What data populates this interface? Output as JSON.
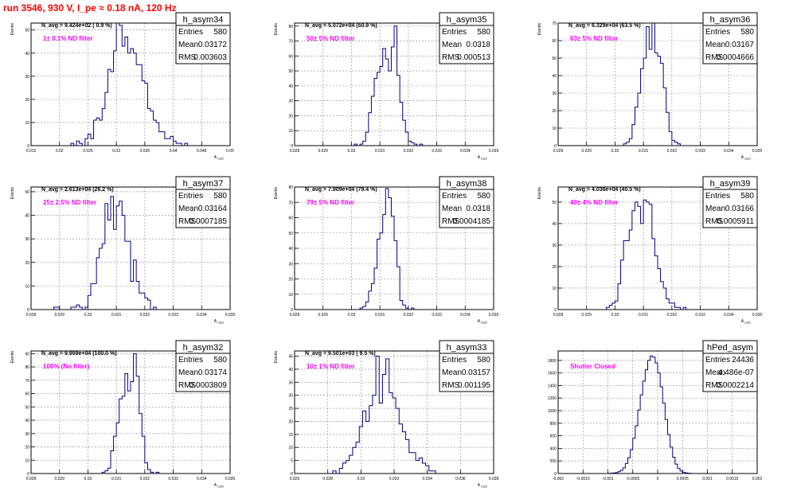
{
  "run_title": "run 3546,   930 V, I_pe ≈ 0.18 nA, 120 Hz",
  "stats_labels": [
    "Entries",
    "Mean",
    "RMS"
  ],
  "colors": {
    "line": "#000080",
    "note": "#ff00ff",
    "title": "#ff0000",
    "grid": "#888888"
  },
  "chart_data": [
    {
      "type": "bar",
      "name": "h_asym34",
      "ylabel": "Events",
      "xlabel": "A",
      "navg": "N_avg = 9.424e+02 ( 0.9 %)",
      "note": "1± 0.1% ND filter",
      "stats": {
        "entries": "580",
        "mean": "0.03172",
        "rms": "0.003603"
      },
      "xlim": [
        0.015,
        0.05
      ],
      "ylim": [
        0,
        53
      ],
      "xticks": [
        0.015,
        0.02,
        0.025,
        0.03,
        0.035,
        0.04,
        0.045,
        0.05
      ],
      "xtick_labels": [
        "0.015",
        "0.02",
        "0.025",
        "0.03",
        "0.035",
        "0.04",
        "0.045",
        "0.05"
      ],
      "yticks": [
        0,
        10,
        20,
        30,
        40,
        50
      ],
      "ytick_labels": [
        "0",
        "10",
        "20",
        "30",
        "40",
        "50"
      ],
      "bin_start": 0.022,
      "bin_width": 0.0005,
      "values": [
        1,
        0,
        2,
        1,
        0,
        3,
        5,
        3,
        11,
        12,
        11,
        16,
        23,
        33,
        32,
        41,
        53,
        52,
        43,
        47,
        40,
        42,
        40,
        35,
        35,
        28,
        27,
        16,
        15,
        11,
        10,
        6,
        6,
        3,
        3,
        4,
        2,
        1,
        1,
        0,
        1
      ]
    },
    {
      "type": "bar",
      "name": "h_asym35",
      "ylabel": "Events",
      "xlabel": "A",
      "navg": "N_avg = 5.072e+04 (50.9 %)",
      "note": "50± 5% ND filter",
      "stats": {
        "entries": "580",
        "mean": "0.0318",
        "rms": "0.000513"
      },
      "xlim": [
        0.028,
        0.035
      ],
      "ylim": [
        0,
        82
      ],
      "xticks": [
        0.028,
        0.029,
        0.03,
        0.031,
        0.032,
        0.033,
        0.034,
        0.035
      ],
      "xtick_labels": [
        "0.028",
        "0.029",
        "0.03",
        "0.031",
        "0.032",
        "0.033",
        "0.034",
        "0.035"
      ],
      "yticks": [
        0,
        10,
        20,
        30,
        40,
        50,
        60,
        70,
        80
      ],
      "ytick_labels": [
        "0",
        "10",
        "20",
        "30",
        "40",
        "50",
        "60",
        "70",
        "80"
      ],
      "bin_start": 0.0301,
      "bin_width": 0.0001,
      "values": [
        1,
        0,
        1,
        3,
        9,
        22,
        33,
        45,
        49,
        53,
        65,
        58,
        50,
        66,
        80,
        47,
        29,
        17,
        9,
        3,
        2,
        1,
        0,
        1
      ]
    },
    {
      "type": "bar",
      "name": "h_asym36",
      "ylabel": "Events",
      "xlabel": "A",
      "navg": "N_avg = 6.329e+04 (63.5 %)",
      "note": "63± 5% ND filter",
      "stats": {
        "entries": "580",
        "mean": "0.03167",
        "rms": "0.0004666"
      },
      "xlim": [
        0.028,
        0.035
      ],
      "ylim": [
        0,
        70
      ],
      "xticks": [
        0.028,
        0.029,
        0.03,
        0.031,
        0.032,
        0.033,
        0.034,
        0.035
      ],
      "xtick_labels": [
        "0.028",
        "0.029",
        "0.03",
        "0.031",
        "0.032",
        "0.033",
        "0.034",
        "0.035"
      ],
      "yticks": [
        0,
        10,
        20,
        30,
        40,
        50,
        60,
        70
      ],
      "ytick_labels": [
        "0",
        "10",
        "20",
        "30",
        "40",
        "50",
        "60",
        "70"
      ],
      "bin_start": 0.0303,
      "bin_width": 0.0001,
      "values": [
        1,
        2,
        4,
        12,
        22,
        30,
        44,
        50,
        68,
        55,
        70,
        53,
        51,
        47,
        33,
        19,
        8,
        3,
        2,
        1
      ]
    },
    {
      "type": "bar",
      "name": "h_asym37",
      "ylabel": "Events",
      "xlabel": "A",
      "navg": "N_avg = 2.613e+04 (26.2 %)",
      "note": "25± 2.5% ND filter",
      "stats": {
        "entries": "580",
        "mean": "0.03164",
        "rms": "0.0007185"
      },
      "xlim": [
        0.028,
        0.035
      ],
      "ylim": [
        0,
        52
      ],
      "xticks": [
        0.028,
        0.029,
        0.03,
        0.031,
        0.032,
        0.033,
        0.034,
        0.035
      ],
      "xtick_labels": [
        "0.028",
        "0.029",
        "0.03",
        "0.031",
        "0.032",
        "0.033",
        "0.034",
        "0.035"
      ],
      "yticks": [
        0,
        10,
        20,
        30,
        40,
        50
      ],
      "ytick_labels": [
        "0",
        "10",
        "20",
        "30",
        "40",
        "50"
      ],
      "bin_start": 0.0288,
      "bin_width": 0.0001,
      "values": [
        1,
        1,
        0,
        0,
        0,
        0,
        1,
        1,
        2,
        1,
        0,
        1,
        6,
        11,
        11,
        22,
        26,
        28,
        45,
        38,
        48,
        34,
        44,
        46,
        40,
        29,
        29,
        12,
        21,
        12,
        7,
        7,
        5,
        4,
        0,
        1
      ]
    },
    {
      "type": "bar",
      "name": "h_asym38",
      "ylabel": "Events",
      "xlabel": "A",
      "navg": "N_avg = 7.909e+04 (79.4 %)",
      "note": "79± 5% ND filter",
      "stats": {
        "entries": "580",
        "mean": "0.0318",
        "rms": "0.0004185"
      },
      "xlim": [
        0.028,
        0.035
      ],
      "ylim": [
        0,
        80
      ],
      "xticks": [
        0.028,
        0.029,
        0.03,
        0.031,
        0.032,
        0.033,
        0.034,
        0.035
      ],
      "xtick_labels": [
        "0.028",
        "0.029",
        "0.03",
        "0.031",
        "0.032",
        "0.033",
        "0.034",
        "0.035"
      ],
      "yticks": [
        0,
        10,
        20,
        30,
        40,
        50,
        60,
        70,
        80
      ],
      "ytick_labels": [
        "0",
        "10",
        "20",
        "30",
        "40",
        "50",
        "60",
        "70",
        "80"
      ],
      "bin_start": 0.0303,
      "bin_width": 0.0001,
      "values": [
        1,
        2,
        5,
        12,
        17,
        27,
        46,
        50,
        62,
        79,
        73,
        61,
        45,
        28,
        6,
        3,
        1,
        0,
        1
      ]
    },
    {
      "type": "bar",
      "name": "h_asym39",
      "ylabel": "Events",
      "xlabel": "A",
      "navg": "N_avg = 4.038e+04 (40.5 %)",
      "note": "40± 4% ND filter",
      "stats": {
        "entries": "580",
        "mean": "0.03166",
        "rms": "0.0005911"
      },
      "xlim": [
        0.028,
        0.035
      ],
      "ylim": [
        0,
        57
      ],
      "xticks": [
        0.028,
        0.029,
        0.03,
        0.031,
        0.032,
        0.033,
        0.034,
        0.035
      ],
      "xtick_labels": [
        "0.028",
        "0.029",
        "0.03",
        "0.031",
        "0.032",
        "0.033",
        "0.034",
        "0.035"
      ],
      "yticks": [
        0,
        10,
        20,
        30,
        40,
        50
      ],
      "ytick_labels": [
        "0",
        "10",
        "20",
        "30",
        "40",
        "50"
      ],
      "bin_start": 0.0297,
      "bin_width": 0.0001,
      "values": [
        1,
        2,
        3,
        4,
        12,
        23,
        32,
        32,
        37,
        46,
        50,
        48,
        40,
        51,
        50,
        49,
        33,
        25,
        19,
        13,
        10,
        5,
        3,
        3,
        1,
        1,
        0,
        1
      ]
    },
    {
      "type": "bar",
      "name": "h_asym32",
      "ylabel": "Events",
      "xlabel": "A",
      "navg": "N_avg = 9.959e+04 (100.0 %)",
      "note": "100% (No filter)",
      "stats": {
        "entries": "580",
        "mean": "0.03174",
        "rms": "0.0003809"
      },
      "xlim": [
        0.028,
        0.035
      ],
      "ylim": [
        0,
        92
      ],
      "xticks": [
        0.028,
        0.029,
        0.03,
        0.031,
        0.032,
        0.033,
        0.034,
        0.035
      ],
      "xtick_labels": [
        "0.028",
        "0.029",
        "0.03",
        "0.031",
        "0.032",
        "0.033",
        "0.034",
        "0.035"
      ],
      "yticks": [
        0,
        10,
        20,
        30,
        40,
        50,
        60,
        70,
        80,
        90
      ],
      "ytick_labels": [
        "0",
        "10",
        "20",
        "30",
        "40",
        "50",
        "60",
        "70",
        "80",
        "90"
      ],
      "bin_start": 0.0305,
      "bin_width": 0.0001,
      "values": [
        1,
        2,
        4,
        17,
        28,
        38,
        56,
        58,
        75,
        62,
        69,
        90,
        73,
        45,
        28,
        8,
        3,
        1,
        0,
        1
      ]
    },
    {
      "type": "bar",
      "name": "h_asym33",
      "ylabel": "Events",
      "xlabel": "A",
      "navg": "N_avg = 9.501e+03 ( 9.5 %)",
      "note": "10± 1% ND filter",
      "stats": {
        "entries": "580",
        "mean": "0.03157",
        "rms": "0.001195"
      },
      "xlim": [
        0.026,
        0.038
      ],
      "ylim": [
        0,
        47
      ],
      "xticks": [
        0.026,
        0.028,
        0.03,
        0.032,
        0.034,
        0.036,
        0.038
      ],
      "xtick_labels": [
        "0.026",
        "0.028",
        "0.03",
        "0.032",
        "0.034",
        "0.036",
        "0.038"
      ],
      "yticks": [
        0,
        5,
        10,
        15,
        20,
        25,
        30,
        35,
        40,
        45
      ],
      "ytick_labels": [
        "0",
        "5",
        "10",
        "15",
        "20",
        "25",
        "30",
        "35",
        "40",
        "45"
      ],
      "bin_start": 0.0283,
      "bin_width": 0.0002,
      "values": [
        1,
        0,
        2,
        4,
        5,
        7,
        10,
        12,
        18,
        24,
        20,
        26,
        30,
        45,
        27,
        38,
        44,
        31,
        29,
        25,
        19,
        16,
        13,
        8,
        8,
        5,
        6,
        4,
        3,
        1,
        1
      ]
    },
    {
      "type": "bar",
      "name": "hPed_asym",
      "ylabel": "",
      "xlabel": "",
      "navg": "",
      "note": "Shutter Closed",
      "stats": {
        "entries": "24436",
        "mean": "4.486e-07",
        "rms": "0.0002214"
      },
      "xlim": [
        -0.002,
        0.002
      ],
      "ylim": [
        0,
        1950
      ],
      "xticks": [
        -0.002,
        -0.0015,
        -0.001,
        -0.0005,
        0,
        0.0005,
        0.001,
        0.0015,
        0.002
      ],
      "xtick_labels": [
        "-0.002",
        "-0.0015",
        "-0.001",
        "-0.0005",
        "0",
        "0.0005",
        "0.001",
        "0.0015",
        "0.002"
      ],
      "yticks": [
        0,
        200,
        400,
        600,
        800,
        1000,
        1200,
        1400,
        1600,
        1800
      ],
      "ytick_labels": [
        "0",
        "200",
        "400",
        "600",
        "800",
        "1000",
        "1200",
        "1400",
        "1600",
        "1800"
      ],
      "bin_start": -0.001,
      "bin_width": 5e-05,
      "values": [
        2,
        4,
        8,
        15,
        28,
        50,
        90,
        160,
        250,
        380,
        560,
        760,
        1010,
        1250,
        1470,
        1650,
        1800,
        1870,
        1850,
        1760,
        1600,
        1380,
        1120,
        860,
        620,
        420,
        260,
        150,
        80,
        40,
        20,
        9,
        4,
        2
      ]
    }
  ]
}
